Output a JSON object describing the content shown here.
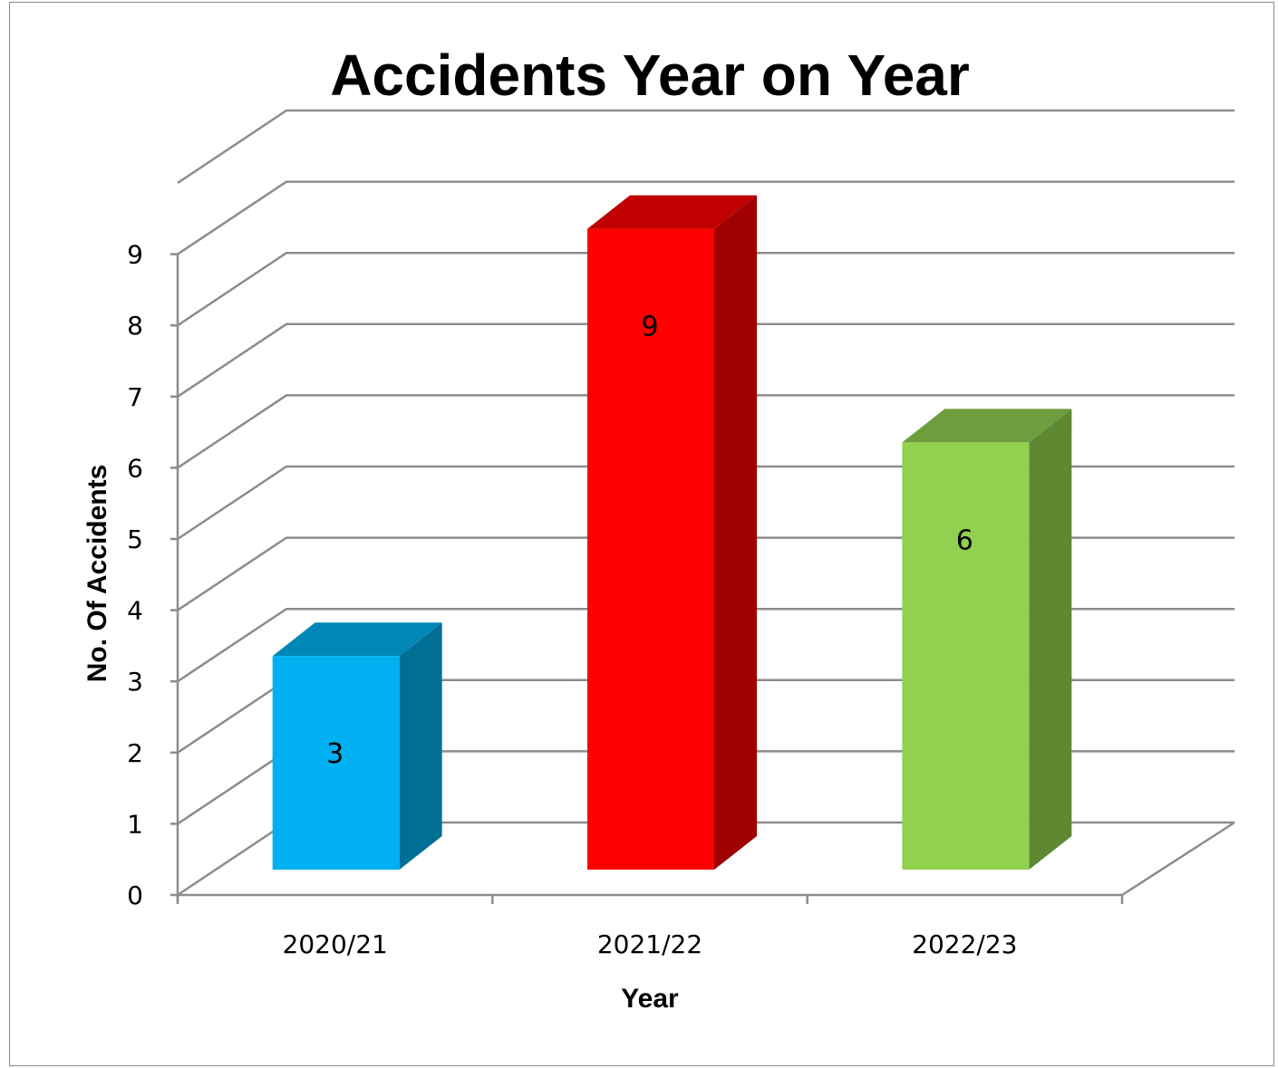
{
  "chart_data": {
    "type": "bar",
    "title": "Accidents Year on Year",
    "xlabel": "Year",
    "ylabel": "No. Of Accidents",
    "categories": [
      "2020/21",
      "2021/22",
      "2022/23"
    ],
    "values": [
      3,
      9,
      6
    ],
    "data_labels": [
      "3",
      "9",
      "6"
    ],
    "y_ticks": [
      "0",
      "1",
      "2",
      "3",
      "4",
      "5",
      "6",
      "7",
      "8",
      "9"
    ],
    "ylim": [
      0,
      9
    ],
    "grid": true,
    "legend": "none",
    "style": "3d-column",
    "colors": [
      {
        "front": "#00b0f0",
        "top": "#0087b8",
        "side": "#006f96"
      },
      {
        "front": "#ff0000",
        "top": "#c00000",
        "side": "#a00000"
      },
      {
        "front": "#92d050",
        "top": "#6d9d3c",
        "side": "#5f8833"
      }
    ]
  }
}
